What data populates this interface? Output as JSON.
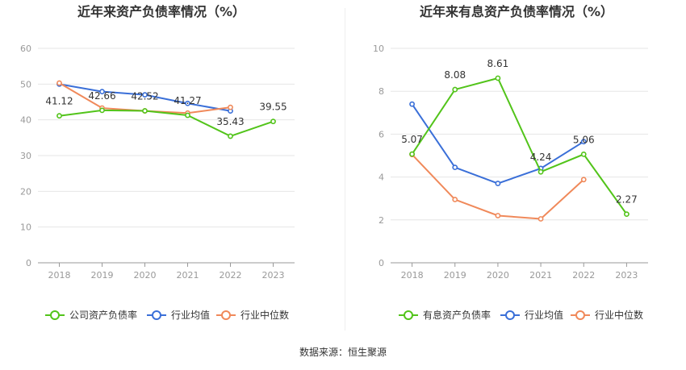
{
  "chart_data": [
    {
      "type": "line",
      "title": "近年来资产负债率情况（%）",
      "categories": [
        "2018",
        "2019",
        "2020",
        "2021",
        "2022",
        "2023"
      ],
      "ylim": [
        0,
        60
      ],
      "yticks": [
        "0",
        "10",
        "20",
        "30",
        "40",
        "50",
        "60"
      ],
      "grid": true,
      "legend_position": "bottom",
      "series": [
        {
          "name": "公司资产负债率",
          "color": "#52c41a",
          "values": [
            41.12,
            42.66,
            42.52,
            41.27,
            35.43,
            39.55
          ],
          "labels": [
            "41.12",
            "42.66",
            "42.52",
            "41.27",
            "35.43",
            "39.55"
          ]
        },
        {
          "name": "行业均值",
          "color": "#3a6fd8",
          "values": [
            50.0,
            47.9,
            47.0,
            44.6,
            42.5,
            null
          ],
          "labels": []
        },
        {
          "name": "行业中位数",
          "color": "#f0895a",
          "values": [
            50.3,
            43.3,
            42.5,
            41.9,
            43.5,
            null
          ],
          "labels": []
        }
      ]
    },
    {
      "type": "line",
      "title": "近年来有息资产负债率情况（%）",
      "categories": [
        "2018",
        "2019",
        "2020",
        "2021",
        "2022",
        "2023"
      ],
      "ylim": [
        0,
        10
      ],
      "yticks": [
        "0",
        "2",
        "4",
        "6",
        "8",
        "10"
      ],
      "grid": true,
      "legend_position": "bottom",
      "series": [
        {
          "name": "有息资产负债率",
          "color": "#52c41a",
          "values": [
            5.07,
            8.08,
            8.61,
            4.24,
            5.06,
            2.27
          ],
          "labels": [
            "5.07",
            "8.08",
            "8.61",
            "4.24",
            "5.06",
            "2.27"
          ]
        },
        {
          "name": "行业均值",
          "color": "#3a6fd8",
          "values": [
            7.4,
            4.45,
            3.7,
            4.4,
            5.65,
            null
          ],
          "labels": []
        },
        {
          "name": "行业中位数",
          "color": "#f0895a",
          "values": [
            5.05,
            2.95,
            2.2,
            2.05,
            3.88,
            null
          ],
          "labels": []
        }
      ]
    }
  ],
  "source": "数据来源：恒生聚源"
}
